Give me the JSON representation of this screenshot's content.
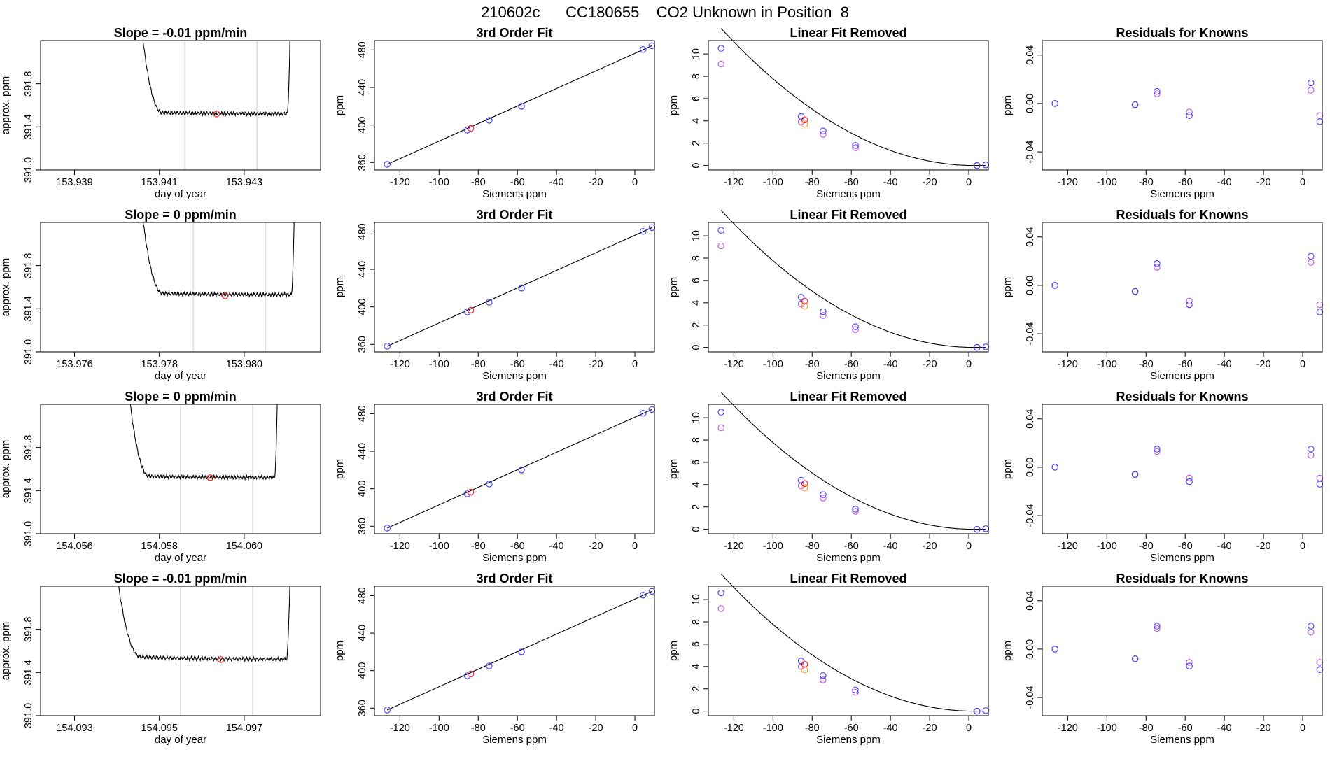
{
  "figure_title": "210602c      CC180655    CO2 Unknown in Position  8",
  "colors": {
    "line": "#000000",
    "known_a": "#4040ff",
    "known_b": "#c050e0",
    "unknown_a": "#ff2020",
    "unknown_b": "#ffa020",
    "vline": "#cccccc"
  },
  "rows": [
    {
      "trace": {
        "title": "Slope =  -0.01  ppm/min",
        "xlabel": "day of year",
        "ylabel": "approx. ppm",
        "xlim": [
          153.9382,
          153.9448
        ],
        "ylim": [
          391.0,
          392.2
        ],
        "xticks": [
          "153.939",
          "153.941",
          "153.943"
        ],
        "xtick_values": [
          153.939,
          153.941,
          153.943
        ],
        "yticks": [
          "391.0",
          "391.4",
          "391.8"
        ],
        "ytick_values": [
          391.0,
          391.4,
          391.8
        ],
        "start": 153.9405,
        "end": 153.9441,
        "vlines": [
          153.9416,
          153.9433
        ],
        "base": 391.54,
        "level": 391.52,
        "marker": {
          "x": 153.94235,
          "y": 391.52
        }
      },
      "fit": {
        "title": "3rd Order Fit",
        "xlabel": "Siemens ppm",
        "ylabel": "ppm",
        "xlim": [
          -133,
          10
        ],
        "ylim": [
          352,
          490
        ],
        "xticks": [
          "-120",
          "-100",
          "-80",
          "-60",
          "-40",
          "-20",
          "0"
        ],
        "yticks": [
          "360",
          "400",
          "440",
          "480"
        ],
        "knowns": [
          [
            -126.5,
            358
          ],
          [
            -85.6,
            394.5
          ],
          [
            -74.4,
            405
          ],
          [
            -57.9,
            420
          ],
          [
            4.2,
            480.5
          ],
          [
            8.7,
            484.5
          ]
        ],
        "unknown": [
          -83.8,
          396.4
        ]
      },
      "linres": {
        "title": "Linear Fit Removed",
        "xlabel": "Siemens ppm",
        "ylabel": "ppm",
        "xlim": [
          -133,
          10
        ],
        "ylim": [
          -0.4,
          11.2
        ],
        "xticks": [
          "-120",
          "-100",
          "-80",
          "-60",
          "-40",
          "-20",
          "0"
        ],
        "yticks": [
          "0",
          "2",
          "4",
          "6",
          "8",
          "10"
        ],
        "curve_a": 0.000733,
        "curve_x0": 3,
        "knowns_a": [
          [
            -126.5,
            10.5
          ],
          [
            -85.6,
            4.4
          ],
          [
            -74.4,
            3.1
          ],
          [
            -57.9,
            1.8
          ],
          [
            4.2,
            0.0
          ],
          [
            8.7,
            0.05
          ]
        ],
        "knowns_b": [
          [
            -126.5,
            9.1
          ],
          [
            -85.6,
            3.9
          ],
          [
            -74.4,
            2.8
          ],
          [
            -57.9,
            1.6
          ],
          [
            4.2,
            0.0
          ],
          [
            8.7,
            0.05
          ]
        ],
        "unknown_a": [
          -83.8,
          4.1
        ],
        "unknown_b": [
          -83.8,
          3.7
        ]
      },
      "resid": {
        "title": "Residuals for Knowns",
        "xlabel": "Siemens ppm",
        "ylabel": "ppm",
        "xlim": [
          -133,
          10
        ],
        "ylim": [
          -0.055,
          0.052
        ],
        "xticks": [
          "-120",
          "-100",
          "-80",
          "-60",
          "-40",
          "-20",
          "0"
        ],
        "yticks": [
          "-0.04",
          "0.00",
          "0.04"
        ],
        "knowns_a": [
          [
            -126.5,
            0.0
          ],
          [
            -85.6,
            -0.001
          ],
          [
            -74.4,
            0.01
          ],
          [
            -57.9,
            -0.01
          ],
          [
            4.2,
            0.017
          ],
          [
            8.7,
            -0.015
          ]
        ],
        "knowns_b": [
          [
            -126.5,
            0.0
          ],
          [
            -85.6,
            -0.001
          ],
          [
            -74.4,
            0.008
          ],
          [
            -57.9,
            -0.007
          ],
          [
            4.2,
            0.011
          ],
          [
            8.7,
            -0.01
          ]
        ]
      }
    },
    {
      "trace": {
        "title": "Slope =  0  ppm/min",
        "xlabel": "day of year",
        "ylabel": "approx. ppm",
        "xlim": [
          153.9752,
          153.9818
        ],
        "ylim": [
          391.0,
          392.2
        ],
        "xticks": [
          "153.976",
          "153.978",
          "153.980"
        ],
        "xtick_values": [
          153.976,
          153.978,
          153.98
        ],
        "yticks": [
          "391.0",
          "391.4",
          "391.8"
        ],
        "ytick_values": [
          391.0,
          391.4,
          391.8
        ],
        "start": 153.9775,
        "end": 153.9812,
        "vlines": [
          153.9788,
          153.9805
        ],
        "base": 391.55,
        "level": 391.53,
        "marker": {
          "x": 153.97955,
          "y": 391.52
        }
      },
      "fit": {
        "title": "3rd Order Fit",
        "xlabel": "Siemens ppm",
        "ylabel": "ppm",
        "xlim": [
          -133,
          10
        ],
        "ylim": [
          352,
          490
        ],
        "xticks": [
          "-120",
          "-100",
          "-80",
          "-60",
          "-40",
          "-20",
          "0"
        ],
        "yticks": [
          "360",
          "400",
          "440",
          "480"
        ],
        "knowns": [
          [
            -126.5,
            358
          ],
          [
            -85.6,
            394.5
          ],
          [
            -74.4,
            405
          ],
          [
            -57.9,
            420
          ],
          [
            4.2,
            480.5
          ],
          [
            8.7,
            484.5
          ]
        ],
        "unknown": [
          -83.8,
          396.4
        ]
      },
      "linres": {
        "title": "Linear Fit Removed",
        "xlabel": "Siemens ppm",
        "ylabel": "ppm",
        "xlim": [
          -133,
          10
        ],
        "ylim": [
          -0.4,
          11.2
        ],
        "xticks": [
          "-120",
          "-100",
          "-80",
          "-60",
          "-40",
          "-20",
          "0"
        ],
        "yticks": [
          "0",
          "2",
          "4",
          "6",
          "8",
          "10"
        ],
        "curve_a": 0.000733,
        "curve_x0": 3,
        "knowns_a": [
          [
            -126.5,
            10.5
          ],
          [
            -85.6,
            4.5
          ],
          [
            -74.4,
            3.2
          ],
          [
            -57.9,
            1.85
          ],
          [
            4.2,
            0.0
          ],
          [
            8.7,
            0.05
          ]
        ],
        "knowns_b": [
          [
            -126.5,
            9.1
          ],
          [
            -85.6,
            3.9
          ],
          [
            -74.4,
            2.85
          ],
          [
            -57.9,
            1.6
          ],
          [
            4.2,
            0.0
          ],
          [
            8.7,
            0.05
          ]
        ],
        "unknown_a": [
          -83.8,
          4.15
        ],
        "unknown_b": [
          -83.8,
          3.7
        ]
      },
      "resid": {
        "title": "Residuals for Knowns",
        "xlabel": "Siemens ppm",
        "ylabel": "ppm",
        "xlim": [
          -133,
          10
        ],
        "ylim": [
          -0.055,
          0.052
        ],
        "xticks": [
          "-120",
          "-100",
          "-80",
          "-60",
          "-40",
          "-20",
          "0"
        ],
        "yticks": [
          "-0.04",
          "0.00",
          "0.04"
        ],
        "knowns_a": [
          [
            -126.5,
            0.0
          ],
          [
            -85.6,
            -0.005
          ],
          [
            -74.4,
            0.018
          ],
          [
            -57.9,
            -0.016
          ],
          [
            4.2,
            0.024
          ],
          [
            8.7,
            -0.022
          ]
        ],
        "knowns_b": [
          [
            -126.5,
            0.0
          ],
          [
            -85.6,
            -0.005
          ],
          [
            -74.4,
            0.015
          ],
          [
            -57.9,
            -0.013
          ],
          [
            4.2,
            0.019
          ],
          [
            8.7,
            -0.016
          ]
        ]
      }
    },
    {
      "trace": {
        "title": "Slope =  0  ppm/min",
        "xlabel": "day of year",
        "ylabel": "approx. ppm",
        "xlim": [
          154.0552,
          154.0618
        ],
        "ylim": [
          391.0,
          392.2
        ],
        "xticks": [
          "154.056",
          "154.058",
          "154.060"
        ],
        "xtick_values": [
          154.056,
          154.058,
          154.06
        ],
        "yticks": [
          "391.0",
          "391.4",
          "391.8"
        ],
        "ytick_values": [
          391.0,
          391.4,
          391.8
        ],
        "start": 154.0572,
        "end": 154.0608,
        "vlines": [
          154.0585,
          154.0602
        ],
        "base": 391.54,
        "level": 391.52,
        "marker": {
          "x": 154.0592,
          "y": 391.52
        }
      },
      "fit": {
        "title": "3rd Order Fit",
        "xlabel": "Siemens ppm",
        "ylabel": "ppm",
        "xlim": [
          -133,
          10
        ],
        "ylim": [
          352,
          490
        ],
        "xticks": [
          "-120",
          "-100",
          "-80",
          "-60",
          "-40",
          "-20",
          "0"
        ],
        "yticks": [
          "360",
          "400",
          "440",
          "480"
        ],
        "knowns": [
          [
            -126.5,
            358
          ],
          [
            -85.6,
            394.5
          ],
          [
            -74.4,
            405
          ],
          [
            -57.9,
            420
          ],
          [
            4.2,
            480.5
          ],
          [
            8.7,
            484.5
          ]
        ],
        "unknown": [
          -83.8,
          396.4
        ]
      },
      "linres": {
        "title": "Linear Fit Removed",
        "xlabel": "Siemens ppm",
        "ylabel": "ppm",
        "xlim": [
          -133,
          10
        ],
        "ylim": [
          -0.4,
          11.2
        ],
        "xticks": [
          "-120",
          "-100",
          "-80",
          "-60",
          "-40",
          "-20",
          "0"
        ],
        "yticks": [
          "0",
          "2",
          "4",
          "6",
          "8",
          "10"
        ],
        "curve_a": 0.000733,
        "curve_x0": 3,
        "knowns_a": [
          [
            -126.5,
            10.5
          ],
          [
            -85.6,
            4.4
          ],
          [
            -74.4,
            3.1
          ],
          [
            -57.9,
            1.8
          ],
          [
            4.2,
            0.0
          ],
          [
            8.7,
            0.05
          ]
        ],
        "knowns_b": [
          [
            -126.5,
            9.1
          ],
          [
            -85.6,
            3.9
          ],
          [
            -74.4,
            2.8
          ],
          [
            -57.9,
            1.6
          ],
          [
            4.2,
            0.0
          ],
          [
            8.7,
            0.05
          ]
        ],
        "unknown_a": [
          -83.8,
          4.1
        ],
        "unknown_b": [
          -83.8,
          3.7
        ]
      },
      "resid": {
        "title": "Residuals for Knowns",
        "xlabel": "Siemens ppm",
        "ylabel": "ppm",
        "xlim": [
          -133,
          10
        ],
        "ylim": [
          -0.055,
          0.052
        ],
        "xticks": [
          "-120",
          "-100",
          "-80",
          "-60",
          "-40",
          "-20",
          "0"
        ],
        "yticks": [
          "-0.04",
          "0.00",
          "0.04"
        ],
        "knowns_a": [
          [
            -126.5,
            0.0
          ],
          [
            -85.6,
            -0.006
          ],
          [
            -74.4,
            0.015
          ],
          [
            -57.9,
            -0.012
          ],
          [
            4.2,
            0.015
          ],
          [
            8.7,
            -0.014
          ]
        ],
        "knowns_b": [
          [
            -126.5,
            0.0
          ],
          [
            -85.6,
            -0.006
          ],
          [
            -74.4,
            0.013
          ],
          [
            -57.9,
            -0.009
          ],
          [
            4.2,
            0.01
          ],
          [
            8.7,
            -0.009
          ]
        ]
      }
    },
    {
      "trace": {
        "title": "Slope =  -0.01  ppm/min",
        "xlabel": "day of year",
        "ylabel": "approx. ppm",
        "xlim": [
          154.0922,
          154.0988
        ],
        "ylim": [
          391.0,
          392.2
        ],
        "xticks": [
          "154.093",
          "154.095",
          "154.097"
        ],
        "xtick_values": [
          154.093,
          154.095,
          154.097
        ],
        "yticks": [
          "391.0",
          "391.4",
          "391.8"
        ],
        "ytick_values": [
          391.0,
          391.4,
          391.8
        ],
        "start": 154.0939,
        "end": 154.0981,
        "vlines": [
          154.0955,
          154.0972
        ],
        "base": 391.56,
        "level": 391.52,
        "marker": {
          "x": 154.09645,
          "y": 391.52
        }
      },
      "fit": {
        "title": "3rd Order Fit",
        "xlabel": "Siemens ppm",
        "ylabel": "ppm",
        "xlim": [
          -133,
          10
        ],
        "ylim": [
          352,
          490
        ],
        "xticks": [
          "-120",
          "-100",
          "-80",
          "-60",
          "-40",
          "-20",
          "0"
        ],
        "yticks": [
          "360",
          "400",
          "440",
          "480"
        ],
        "knowns": [
          [
            -126.5,
            358
          ],
          [
            -85.6,
            394.5
          ],
          [
            -74.4,
            405
          ],
          [
            -57.9,
            420
          ],
          [
            4.2,
            480.5
          ],
          [
            8.7,
            484.5
          ]
        ],
        "unknown": [
          -83.8,
          396.4
        ]
      },
      "linres": {
        "title": "Linear Fit Removed",
        "xlabel": "Siemens ppm",
        "ylabel": "ppm",
        "xlim": [
          -133,
          10
        ],
        "ylim": [
          -0.4,
          11.2
        ],
        "xticks": [
          "-120",
          "-100",
          "-80",
          "-60",
          "-40",
          "-20",
          "0"
        ],
        "yticks": [
          "0",
          "2",
          "4",
          "6",
          "8",
          "10"
        ],
        "curve_a": 0.000733,
        "curve_x0": 3,
        "knowns_a": [
          [
            -126.5,
            10.6
          ],
          [
            -85.6,
            4.5
          ],
          [
            -74.4,
            3.2
          ],
          [
            -57.9,
            1.9
          ],
          [
            4.2,
            0.0
          ],
          [
            8.7,
            0.05
          ]
        ],
        "knowns_b": [
          [
            -126.5,
            9.2
          ],
          [
            -85.6,
            4.0
          ],
          [
            -74.4,
            2.8
          ],
          [
            -57.9,
            1.7
          ],
          [
            4.2,
            0.0
          ],
          [
            8.7,
            0.05
          ]
        ],
        "unknown_a": [
          -83.8,
          4.2
        ],
        "unknown_b": [
          -83.8,
          3.7
        ]
      },
      "resid": {
        "title": "Residuals for Knowns",
        "xlabel": "Siemens ppm",
        "ylabel": "ppm",
        "xlim": [
          -133,
          10
        ],
        "ylim": [
          -0.055,
          0.052
        ],
        "xticks": [
          "-120",
          "-100",
          "-80",
          "-60",
          "-40",
          "-20",
          "0"
        ],
        "yticks": [
          "-0.04",
          "0.00",
          "0.04"
        ],
        "knowns_a": [
          [
            -126.5,
            0.0
          ],
          [
            -85.6,
            -0.008
          ],
          [
            -74.4,
            0.019
          ],
          [
            -57.9,
            -0.014
          ],
          [
            4.2,
            0.019
          ],
          [
            8.7,
            -0.017
          ]
        ],
        "knowns_b": [
          [
            -126.5,
            0.0
          ],
          [
            -85.6,
            -0.008
          ],
          [
            -74.4,
            0.017
          ],
          [
            -57.9,
            -0.011
          ],
          [
            4.2,
            0.014
          ],
          [
            8.7,
            -0.011
          ]
        ]
      }
    }
  ]
}
